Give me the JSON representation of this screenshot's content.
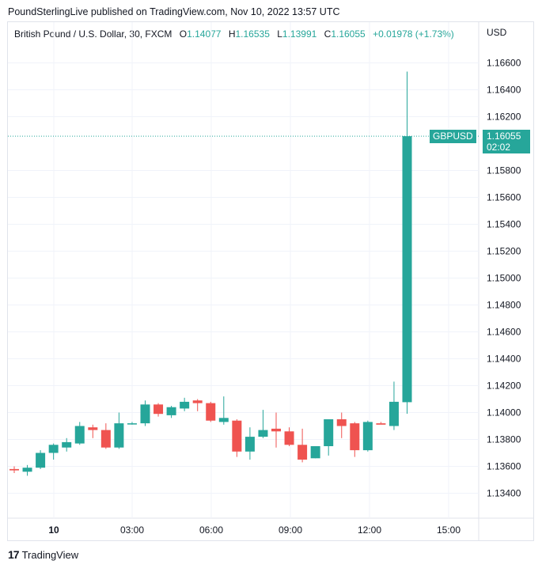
{
  "publish_line": "PoundSterlingLive published on TradingView.com, Nov 10, 2022 13:57 UTC",
  "legend": {
    "symbol": "British Pound / U.S. Dollar, 30, FXCM",
    "o_label": "O",
    "o_value": "1.14077",
    "h_label": "H",
    "h_value": "1.16535",
    "l_label": "L",
    "l_value": "1.13991",
    "c_label": "C",
    "c_value": "1.16055",
    "change": "+0.01978 (+1.73%)"
  },
  "currency": "USD",
  "last_price": {
    "symbol": "GBPUSD",
    "price": "1.16055",
    "countdown": "02:02"
  },
  "footer_brand": "TradingView",
  "colors": {
    "up": "#26a69a",
    "down": "#ef5350",
    "grid": "#f0f3fa",
    "text": "#131722"
  },
  "chart_data": {
    "type": "candlestick",
    "ylim": [
      1.132,
      1.168
    ],
    "y_ticks": [
      "1.16600",
      "1.16400",
      "1.16200",
      "1.15800",
      "1.15600",
      "1.15400",
      "1.15200",
      "1.15000",
      "1.14800",
      "1.14600",
      "1.14400",
      "1.14200",
      "1.14000",
      "1.13800",
      "1.13600",
      "1.13400"
    ],
    "x_ticks": [
      "10",
      "03:00",
      "06:00",
      "09:00",
      "12:00",
      "15:00"
    ],
    "candles": [
      {
        "o": 1.1358,
        "h": 1.136,
        "l": 1.1355,
        "c": 1.1357
      },
      {
        "o": 1.1356,
        "h": 1.1361,
        "l": 1.1353,
        "c": 1.1359
      },
      {
        "o": 1.1359,
        "h": 1.1372,
        "l": 1.1358,
        "c": 1.137
      },
      {
        "o": 1.137,
        "h": 1.1377,
        "l": 1.1365,
        "c": 1.1376
      },
      {
        "o": 1.1374,
        "h": 1.1381,
        "l": 1.1371,
        "c": 1.1378
      },
      {
        "o": 1.1377,
        "h": 1.1393,
        "l": 1.1376,
        "c": 1.139
      },
      {
        "o": 1.1389,
        "h": 1.1391,
        "l": 1.1381,
        "c": 1.1387
      },
      {
        "o": 1.1387,
        "h": 1.1392,
        "l": 1.1373,
        "c": 1.1374
      },
      {
        "o": 1.1374,
        "h": 1.14,
        "l": 1.1373,
        "c": 1.1392
      },
      {
        "o": 1.1392,
        "h": 1.1393,
        "l": 1.1391,
        "c": 1.1392
      },
      {
        "o": 1.1392,
        "h": 1.1409,
        "l": 1.139,
        "c": 1.1406
      },
      {
        "o": 1.1406,
        "h": 1.1407,
        "l": 1.1397,
        "c": 1.1399
      },
      {
        "o": 1.1398,
        "h": 1.1405,
        "l": 1.1396,
        "c": 1.1404
      },
      {
        "o": 1.1403,
        "h": 1.1411,
        "l": 1.1401,
        "c": 1.1408
      },
      {
        "o": 1.1409,
        "h": 1.141,
        "l": 1.1401,
        "c": 1.1407
      },
      {
        "o": 1.1407,
        "h": 1.1408,
        "l": 1.1393,
        "c": 1.1394
      },
      {
        "o": 1.1393,
        "h": 1.1412,
        "l": 1.1391,
        "c": 1.1396
      },
      {
        "o": 1.1394,
        "h": 1.1395,
        "l": 1.1367,
        "c": 1.1371
      },
      {
        "o": 1.1371,
        "h": 1.1389,
        "l": 1.1365,
        "c": 1.1382
      },
      {
        "o": 1.1382,
        "h": 1.1402,
        "l": 1.1381,
        "c": 1.1387
      },
      {
        "o": 1.1388,
        "h": 1.14,
        "l": 1.1374,
        "c": 1.1386
      },
      {
        "o": 1.1386,
        "h": 1.1389,
        "l": 1.1375,
        "c": 1.1376
      },
      {
        "o": 1.1376,
        "h": 1.1388,
        "l": 1.1363,
        "c": 1.1365
      },
      {
        "o": 1.1366,
        "h": 1.1375,
        "l": 1.1366,
        "c": 1.1375
      },
      {
        "o": 1.1375,
        "h": 1.1395,
        "l": 1.1368,
        "c": 1.1395
      },
      {
        "o": 1.1395,
        "h": 1.14,
        "l": 1.1381,
        "c": 1.139
      },
      {
        "o": 1.1392,
        "h": 1.1393,
        "l": 1.1367,
        "c": 1.1372
      },
      {
        "o": 1.1372,
        "h": 1.1394,
        "l": 1.1371,
        "c": 1.1393
      },
      {
        "o": 1.1392,
        "h": 1.1393,
        "l": 1.1392,
        "c": 1.1391
      },
      {
        "o": 1.139,
        "h": 1.1423,
        "l": 1.1387,
        "c": 1.1408
      },
      {
        "o": 1.14077,
        "h": 1.16535,
        "l": 1.13991,
        "c": 1.16055
      }
    ]
  }
}
